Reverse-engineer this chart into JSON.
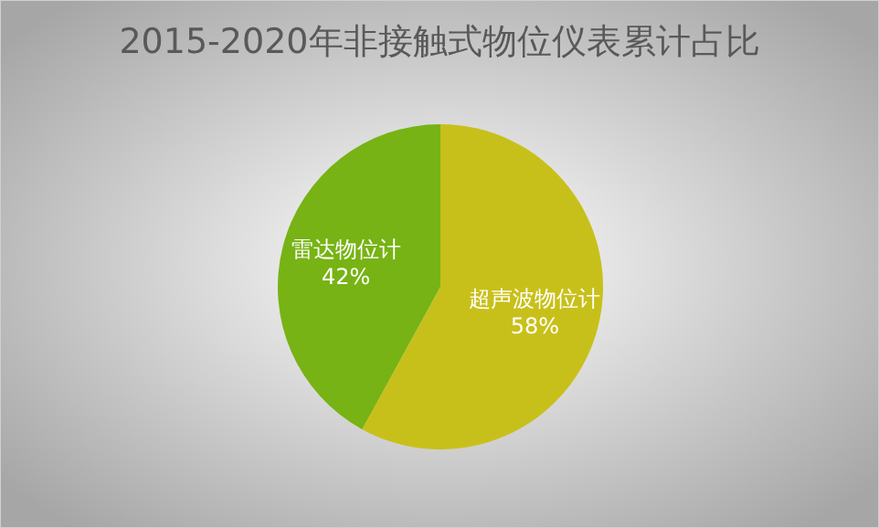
{
  "chart_data": {
    "type": "pie",
    "title": "2015-2020年非接触式物位仪表累计占比",
    "categories": [
      "超声波物位计",
      "雷达物位计"
    ],
    "values": [
      58,
      42
    ],
    "value_labels": [
      "58%",
      "42%"
    ],
    "colors": [
      "#c8c01a",
      "#77b314"
    ]
  }
}
